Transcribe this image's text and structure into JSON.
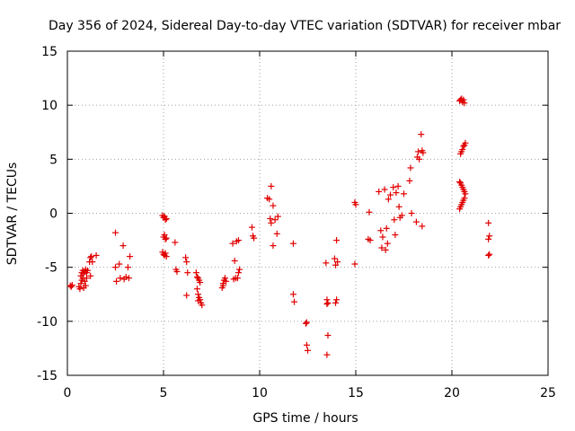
{
  "chart_data": {
    "type": "scatter",
    "title": "Day 356 of 2024, Sidereal Day-to-day VTEC variation (SDTVAR) for receiver mbar",
    "xlabel": "GPS time / hours",
    "ylabel": "SDTVAR / TECUs",
    "xlim": [
      0,
      25
    ],
    "ylim": [
      -15,
      15
    ],
    "xticks": [
      0,
      5,
      10,
      15,
      20,
      25
    ],
    "yticks": [
      -15,
      -10,
      -5,
      0,
      5,
      10,
      15
    ],
    "grid": true,
    "marker": "+",
    "color": "#e00000",
    "series": [
      {
        "name": "mbar",
        "points": [
          [
            0.15,
            -6.7
          ],
          [
            0.2,
            -6.8
          ],
          [
            0.25,
            -6.65
          ],
          [
            0.6,
            -6.8
          ],
          [
            0.65,
            -7.0
          ],
          [
            0.7,
            -6.5
          ],
          [
            0.7,
            -5.8
          ],
          [
            0.75,
            -5.5
          ],
          [
            0.75,
            -6.2
          ],
          [
            0.8,
            -5.3
          ],
          [
            0.8,
            -6.0
          ],
          [
            0.85,
            -6.9
          ],
          [
            0.85,
            -5.6
          ],
          [
            0.9,
            -5.4
          ],
          [
            0.9,
            -6.3
          ],
          [
            0.95,
            -5.2
          ],
          [
            0.95,
            -6.7
          ],
          [
            1.0,
            -5.5
          ],
          [
            1.0,
            -6.0
          ],
          [
            1.05,
            -5.3
          ],
          [
            1.15,
            -4.5
          ],
          [
            1.2,
            -4.1
          ],
          [
            1.25,
            -4.0
          ],
          [
            1.3,
            -4.5
          ],
          [
            1.2,
            -5.8
          ],
          [
            1.5,
            -3.9
          ],
          [
            2.5,
            -1.8
          ],
          [
            2.5,
            -5.0
          ],
          [
            2.55,
            -6.3
          ],
          [
            2.7,
            -4.7
          ],
          [
            2.75,
            -6.0
          ],
          [
            2.9,
            -3.0
          ],
          [
            2.95,
            -6.1
          ],
          [
            3.05,
            -5.9
          ],
          [
            3.15,
            -5.0
          ],
          [
            3.25,
            -4.0
          ],
          [
            3.2,
            -6.0
          ],
          [
            4.95,
            -0.2
          ],
          [
            5.0,
            -0.4
          ],
          [
            5.05,
            -0.3
          ],
          [
            5.1,
            -0.6
          ],
          [
            5.15,
            -0.5
          ],
          [
            5.0,
            -2.2
          ],
          [
            5.05,
            -2.0
          ],
          [
            5.1,
            -2.4
          ],
          [
            5.15,
            -2.3
          ],
          [
            4.95,
            -3.6
          ],
          [
            5.0,
            -3.8
          ],
          [
            5.05,
            -3.9
          ],
          [
            5.1,
            -3.7
          ],
          [
            5.15,
            -4.0
          ],
          [
            5.6,
            -2.7
          ],
          [
            5.65,
            -5.2
          ],
          [
            5.7,
            -5.4
          ],
          [
            6.15,
            -4.1
          ],
          [
            6.2,
            -4.5
          ],
          [
            6.25,
            -5.5
          ],
          [
            6.2,
            -7.6
          ],
          [
            6.7,
            -5.5
          ],
          [
            6.75,
            -5.9
          ],
          [
            6.8,
            -6.0
          ],
          [
            6.85,
            -6.2
          ],
          [
            6.75,
            -7.0
          ],
          [
            6.8,
            -7.5
          ],
          [
            6.85,
            -7.8
          ],
          [
            6.9,
            -8.0
          ],
          [
            6.95,
            -8.3
          ],
          [
            6.8,
            -8.1
          ],
          [
            7.0,
            -8.5
          ],
          [
            6.9,
            -6.4
          ],
          [
            8.05,
            -6.9
          ],
          [
            8.1,
            -6.5
          ],
          [
            8.15,
            -6.2
          ],
          [
            8.2,
            -6.0
          ],
          [
            8.25,
            -6.3
          ],
          [
            8.1,
            -6.7
          ],
          [
            8.6,
            -2.8
          ],
          [
            8.7,
            -4.4
          ],
          [
            8.65,
            -6.1
          ],
          [
            8.75,
            -6.0
          ],
          [
            8.8,
            -2.6
          ],
          [
            8.9,
            -2.5
          ],
          [
            8.95,
            -5.2
          ],
          [
            8.9,
            -5.5
          ],
          [
            8.85,
            -6.0
          ],
          [
            9.6,
            -1.3
          ],
          [
            9.65,
            -2.1
          ],
          [
            9.7,
            -2.3
          ],
          [
            10.4,
            1.4
          ],
          [
            10.5,
            1.3
          ],
          [
            10.6,
            2.5
          ],
          [
            10.55,
            -0.5
          ],
          [
            10.6,
            -0.9
          ],
          [
            10.7,
            0.7
          ],
          [
            10.7,
            -3.0
          ],
          [
            10.8,
            -0.6
          ],
          [
            10.95,
            -0.3
          ],
          [
            10.9,
            -1.9
          ],
          [
            11.75,
            -2.8
          ],
          [
            11.75,
            -7.5
          ],
          [
            11.8,
            -8.2
          ],
          [
            12.4,
            -10.2
          ],
          [
            12.45,
            -12.2
          ],
          [
            12.5,
            -12.7
          ],
          [
            12.45,
            -10.1
          ],
          [
            13.45,
            -4.6
          ],
          [
            13.5,
            -8.0
          ],
          [
            13.5,
            -8.4
          ],
          [
            13.55,
            -8.3
          ],
          [
            13.55,
            -11.3
          ],
          [
            13.5,
            -13.1
          ],
          [
            13.9,
            -4.2
          ],
          [
            13.95,
            -4.8
          ],
          [
            14.0,
            -2.5
          ],
          [
            14.0,
            -8.0
          ],
          [
            13.95,
            -8.3
          ],
          [
            14.05,
            -4.5
          ],
          [
            14.95,
            1.0
          ],
          [
            15.0,
            0.8
          ],
          [
            14.95,
            -4.7
          ],
          [
            15.65,
            -2.4
          ],
          [
            15.7,
            0.1
          ],
          [
            15.75,
            -2.5
          ],
          [
            16.2,
            2.0
          ],
          [
            16.3,
            -1.6
          ],
          [
            16.35,
            -3.2
          ],
          [
            16.4,
            -2.2
          ],
          [
            16.5,
            2.2
          ],
          [
            16.55,
            -3.4
          ],
          [
            16.6,
            -1.4
          ],
          [
            16.65,
            -2.8
          ],
          [
            16.7,
            1.3
          ],
          [
            16.8,
            1.7
          ],
          [
            16.95,
            2.4
          ],
          [
            17.0,
            -0.6
          ],
          [
            17.05,
            -2.0
          ],
          [
            17.1,
            1.9
          ],
          [
            17.2,
            2.5
          ],
          [
            17.25,
            0.6
          ],
          [
            17.3,
            -0.4
          ],
          [
            17.4,
            -0.2
          ],
          [
            17.5,
            1.8
          ],
          [
            17.8,
            3.0
          ],
          [
            17.85,
            4.2
          ],
          [
            17.9,
            0.0
          ],
          [
            18.15,
            -0.8
          ],
          [
            18.2,
            5.2
          ],
          [
            18.25,
            5.7
          ],
          [
            18.3,
            5.0
          ],
          [
            18.4,
            7.3
          ],
          [
            18.45,
            -1.2
          ],
          [
            18.45,
            5.8
          ],
          [
            18.5,
            5.6
          ],
          [
            20.4,
            10.4
          ],
          [
            20.45,
            10.5
          ],
          [
            20.5,
            10.6
          ],
          [
            20.55,
            10.3
          ],
          [
            20.6,
            10.5
          ],
          [
            20.65,
            10.2
          ],
          [
            20.45,
            5.5
          ],
          [
            20.5,
            5.7
          ],
          [
            20.55,
            5.9
          ],
          [
            20.6,
            6.2
          ],
          [
            20.65,
            6.3
          ],
          [
            20.7,
            6.5
          ],
          [
            20.4,
            2.9
          ],
          [
            20.45,
            2.8
          ],
          [
            20.5,
            2.6
          ],
          [
            20.55,
            2.4
          ],
          [
            20.6,
            2.2
          ],
          [
            20.65,
            2.0
          ],
          [
            20.7,
            1.8
          ],
          [
            20.4,
            0.4
          ],
          [
            20.45,
            0.6
          ],
          [
            20.5,
            0.8
          ],
          [
            20.55,
            1.0
          ],
          [
            20.6,
            1.2
          ],
          [
            20.65,
            1.4
          ],
          [
            21.9,
            -0.9
          ],
          [
            21.95,
            -2.1
          ],
          [
            21.9,
            -2.4
          ],
          [
            21.95,
            -3.8
          ],
          [
            21.9,
            -3.9
          ]
        ]
      }
    ]
  }
}
